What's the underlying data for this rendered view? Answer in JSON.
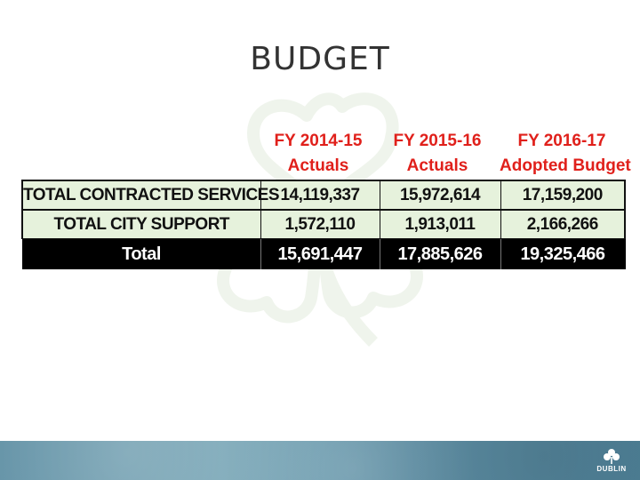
{
  "slide": {
    "title": "BUDGET"
  },
  "table": {
    "columns": [
      {
        "line1": "FY 2014-15",
        "line2": "Actuals"
      },
      {
        "line1": "FY 2015-16",
        "line2": "Actuals"
      },
      {
        "line1": "FY 2016-17",
        "line2": "Adopted Budget"
      }
    ],
    "rows": [
      {
        "label": "TOTAL CONTRACTED SERVICES",
        "values": [
          "14,119,337",
          "15,972,614",
          "17,159,200"
        ]
      },
      {
        "label": "TOTAL CITY SUPPORT",
        "values": [
          "1,572,110",
          "1,913,011",
          "2,166,266"
        ]
      }
    ],
    "total": {
      "label": "Total",
      "values": [
        "15,691,447",
        "17,885,626",
        "19,325,466"
      ]
    }
  },
  "footer": {
    "logo_text": "DUBLIN"
  },
  "colors": {
    "header_text": "#e0201b",
    "row_fill": "#e6f2dc",
    "total_fill": "#000000",
    "footer_band": "#6b9aad"
  },
  "icons": {
    "watermark": "shamrock-icon",
    "logo": "shamrock-icon"
  }
}
